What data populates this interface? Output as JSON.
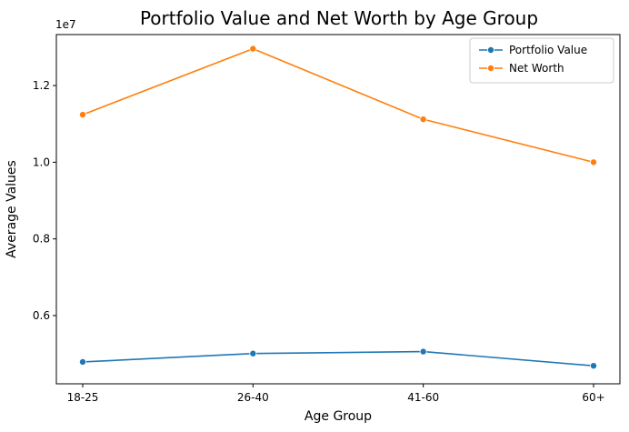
{
  "chart_data": {
    "type": "line",
    "title": "Portfolio Value and Net Worth by Age Group",
    "xlabel": "Age Group",
    "ylabel": "Average Values",
    "offset_label": "1e7",
    "categories": [
      "18-25",
      "26-40",
      "41-60",
      "60+"
    ],
    "ylim": [
      4220000,
      13330000
    ],
    "yticks": [
      0.6,
      0.8,
      1.0,
      1.2
    ],
    "ytick_labels": [
      "0.6",
      "0.8",
      "1.0",
      "1.2"
    ],
    "y_scale": 10000000,
    "grid": false,
    "legend_position": "upper right",
    "series": [
      {
        "name": "Portfolio Value",
        "color": "#1f77b4",
        "values": [
          4790000,
          5010000,
          5060000,
          4690000
        ]
      },
      {
        "name": "Net Worth",
        "color": "#ff7f0e",
        "values": [
          11240000,
          12960000,
          11120000,
          10000000
        ]
      }
    ]
  }
}
